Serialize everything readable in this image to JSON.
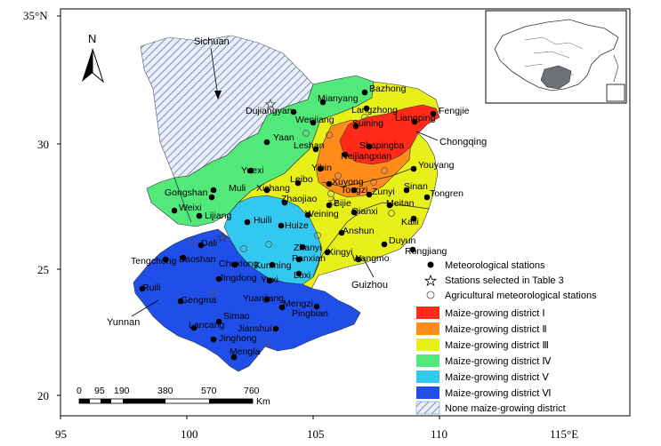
{
  "axes": {
    "x_ticks": [
      "95",
      "100",
      "105",
      "110",
      "115°E"
    ],
    "y_ticks": [
      "35°N",
      "30",
      "25",
      "20"
    ]
  },
  "north_label": "N",
  "colors": {
    "district_I": "#ff2a1a",
    "district_II": "#ff8c1a",
    "district_III": "#e8f01a",
    "district_IV": "#52e87a",
    "district_V": "#33c8f0",
    "district_VI": "#1f4fe8",
    "none_hatch": "#a9b8d8"
  },
  "region_labels": {
    "sichuan": "Sichuan",
    "chongqing": "Chongqing",
    "guizhou": "Guizhou",
    "yunnan": "Yunnan"
  },
  "stations": [
    "Bazhong",
    "Fengjie",
    "Mianyang",
    "Langzhong",
    "Dujiangyan",
    "Wenjiang",
    "Suining",
    "Liangping",
    "Yaan",
    "Leshan",
    "Shapingba",
    "Neijiangxian",
    "Yuexi",
    "Yibin",
    "Xuyong",
    "Youyang",
    "Muli",
    "Xichang",
    "Leibo",
    "Tongzi",
    "Zunyi",
    "Sinan",
    "Tongren",
    "Gongshan",
    "Weixi",
    "Zhaojiao",
    "Bijie",
    "Meitan",
    "Lijiang",
    "Weining",
    "Qianxi",
    "Kaili",
    "Huili",
    "Huize",
    "Anshun",
    "Dali",
    "Zhanyi",
    "Duyun",
    "Rongjiang",
    "Tengchong",
    "Baoshan",
    "Kunming",
    "Xingyi",
    "Panxian",
    "Wangmo",
    "Chuxiong",
    "Ruili",
    "Jingdong",
    "Yuxi",
    "Luxi",
    "Gengma",
    "Yuanjiang",
    "Mengzi",
    "Pingbian",
    "Lancang",
    "Simao",
    "Jianshui",
    "Jinghong",
    "Mengla"
  ],
  "scale_bar": {
    "ticks": [
      "0",
      "95",
      "190",
      "380",
      "570",
      "760"
    ],
    "unit": "Km"
  },
  "legend": [
    {
      "kind": "dot",
      "label": "Meteorological stations"
    },
    {
      "kind": "star",
      "label": "Stations selected in Table 3"
    },
    {
      "kind": "circle",
      "label": "Agricultural meteorological stations"
    },
    {
      "kind": "swatch",
      "color_key": "district_I",
      "label": "Maize-growing district Ⅰ"
    },
    {
      "kind": "swatch",
      "color_key": "district_II",
      "label": "Maize-growing district Ⅱ"
    },
    {
      "kind": "swatch",
      "color_key": "district_III",
      "label": "Maize-growing district Ⅲ"
    },
    {
      "kind": "swatch",
      "color_key": "district_IV",
      "label": "Maize-growing district Ⅳ"
    },
    {
      "kind": "swatch",
      "color_key": "district_V",
      "label": "Maize-growing district Ⅴ"
    },
    {
      "kind": "swatch",
      "color_key": "district_VI",
      "label": "Maize-growing district Ⅵ"
    },
    {
      "kind": "hatch",
      "color_key": "none_hatch",
      "label": "None maize-growing district"
    }
  ]
}
